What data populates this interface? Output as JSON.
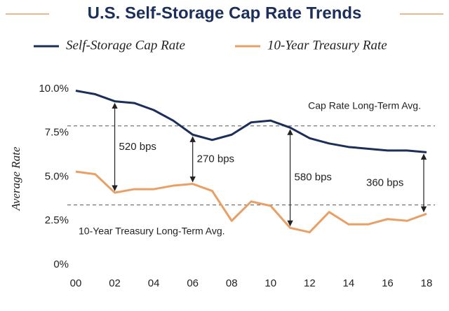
{
  "chart_data": {
    "type": "line",
    "title": "U.S. Self-Storage Cap Rate Trends",
    "y_label": "Average Rate",
    "categories": [
      "00",
      null,
      "02",
      null,
      "04",
      null,
      "06",
      null,
      "08",
      null,
      "10",
      null,
      "12",
      null,
      "14",
      null,
      "16",
      null,
      "18"
    ],
    "series": [
      {
        "name": "Self-Storage Cap Rate",
        "color": "#1b2f5a",
        "values": [
          9.9,
          9.7,
          9.3,
          9.2,
          8.8,
          8.2,
          7.4,
          7.1,
          7.4,
          8.1,
          8.2,
          7.8,
          7.2,
          6.9,
          6.7,
          6.6,
          6.5,
          6.5,
          6.4
        ]
      },
      {
        "name": "10-Year Treasury Rate",
        "color": "#e8a066",
        "values": [
          5.3,
          5.15,
          4.1,
          4.3,
          4.3,
          4.5,
          4.6,
          4.2,
          2.5,
          3.6,
          3.35,
          2.1,
          1.85,
          3.0,
          2.3,
          2.3,
          2.6,
          2.5,
          2.9
        ]
      }
    ],
    "reference_lines": [
      {
        "label": "Cap Rate Long-Term Avg.",
        "value": 7.9
      },
      {
        "label": "10-Year Treasury Long-Term Avg.",
        "value": 3.4
      }
    ],
    "annotations": [
      "520 bps",
      "270 bps",
      "580 bps",
      "360 bps"
    ],
    "ylim": [
      0,
      10
    ],
    "yticks": [
      {
        "value": 0,
        "label": "0%"
      },
      {
        "value": 2.5,
        "label": "2.5%"
      },
      {
        "value": 5,
        "label": "5.0%"
      },
      {
        "value": 7.5,
        "label": "7.5%"
      },
      {
        "value": 10,
        "label": "10.0%"
      }
    ]
  }
}
